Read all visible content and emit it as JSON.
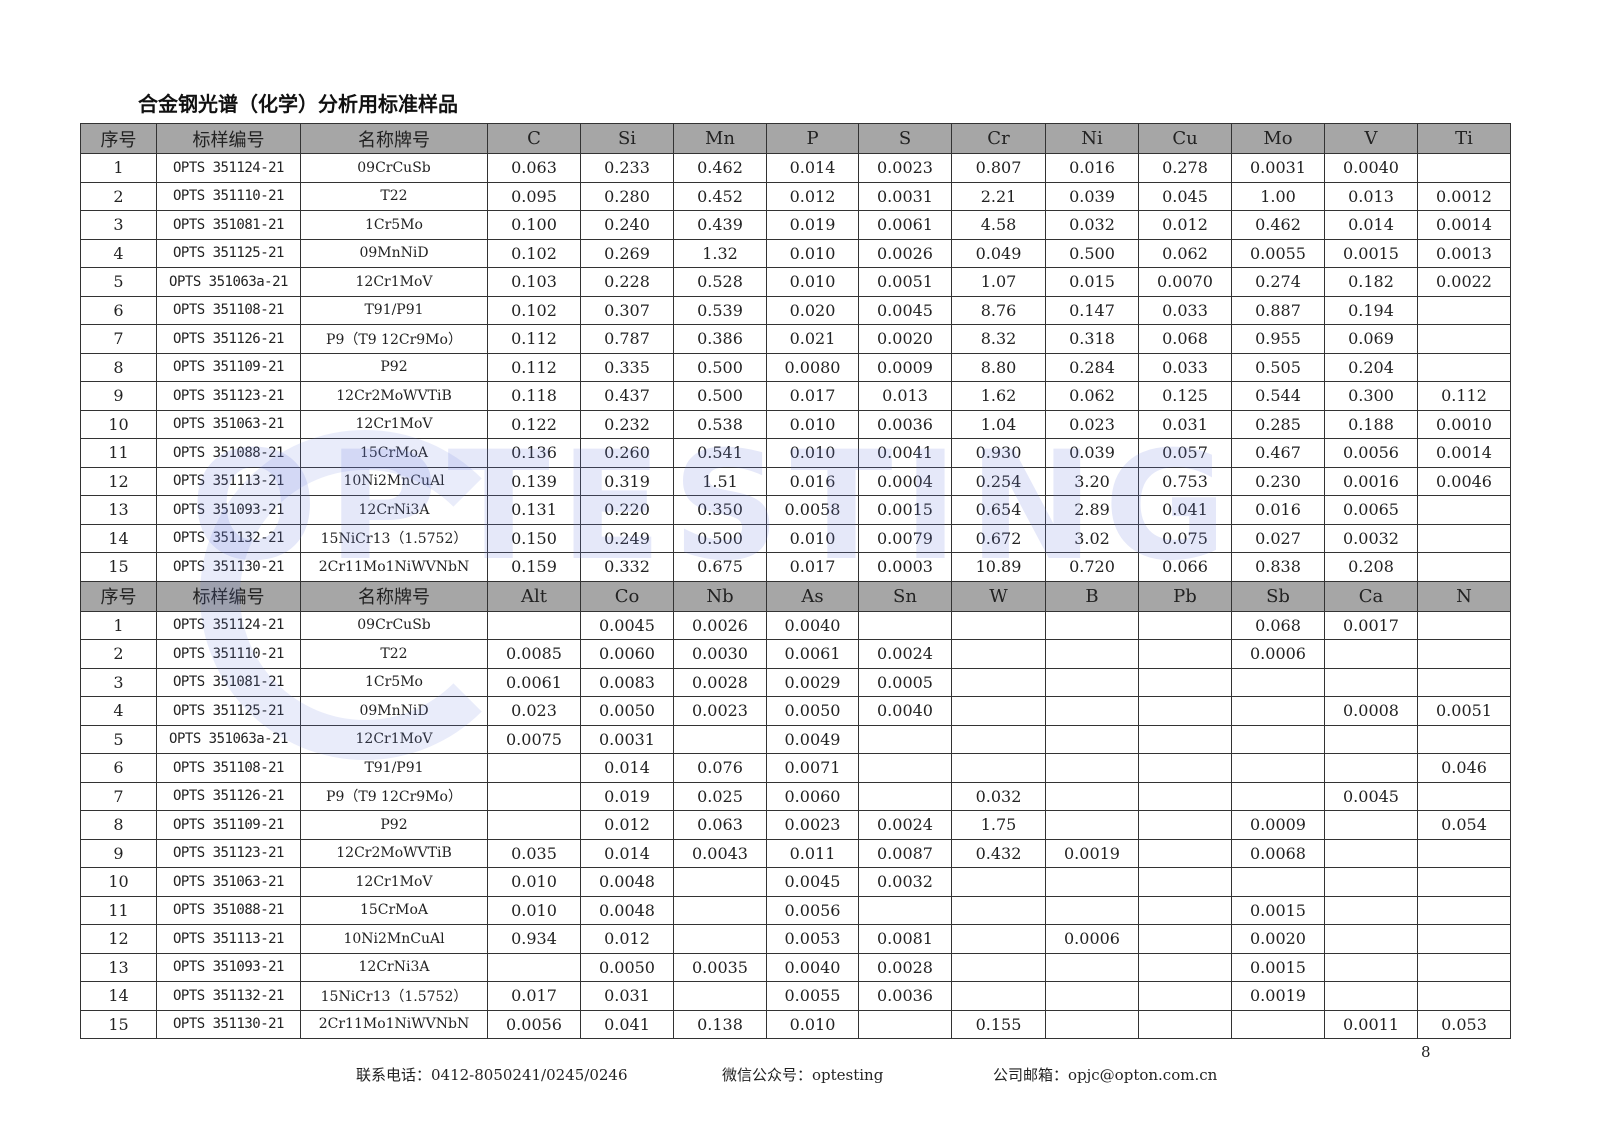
{
  "title": "合金钢光谱（化学）分析用标准样品",
  "watermark": "OPTESTING",
  "table1": {
    "headers": [
      "序号",
      "标样编号",
      "名称牌号",
      "C",
      "Si",
      "Mn",
      "P",
      "S",
      "Cr",
      "Ni",
      "Cu",
      "Mo",
      "V",
      "Ti"
    ],
    "rows": [
      [
        "1",
        "OPTS 351124-21",
        "09CrCuSb",
        "0.063",
        "0.233",
        "0.462",
        "0.014",
        "0.0023",
        "0.807",
        "0.016",
        "0.278",
        "0.0031",
        "0.0040",
        ""
      ],
      [
        "2",
        "OPTS 351110-21",
        "T22",
        "0.095",
        "0.280",
        "0.452",
        "0.012",
        "0.0031",
        "2.21",
        "0.039",
        "0.045",
        "1.00",
        "0.013",
        "0.0012"
      ],
      [
        "3",
        "OPTS 351081-21",
        "1Cr5Mo",
        "0.100",
        "0.240",
        "0.439",
        "0.019",
        "0.0061",
        "4.58",
        "0.032",
        "0.012",
        "0.462",
        "0.014",
        "0.0014"
      ],
      [
        "4",
        "OPTS 351125-21",
        "09MnNiD",
        "0.102",
        "0.269",
        "1.32",
        "0.010",
        "0.0026",
        "0.049",
        "0.500",
        "0.062",
        "0.0055",
        "0.0015",
        "0.0013"
      ],
      [
        "5",
        "OPTS 351063a-21",
        "12Cr1MoV",
        "0.103",
        "0.228",
        "0.528",
        "0.010",
        "0.0051",
        "1.07",
        "0.015",
        "0.0070",
        "0.274",
        "0.182",
        "0.0022"
      ],
      [
        "6",
        "OPTS 351108-21",
        "T91/P91",
        "0.102",
        "0.307",
        "0.539",
        "0.020",
        "0.0045",
        "8.76",
        "0.147",
        "0.033",
        "0.887",
        "0.194",
        ""
      ],
      [
        "7",
        "OPTS 351126-21",
        "P9（T9 12Cr9Mo）",
        "0.112",
        "0.787",
        "0.386",
        "0.021",
        "0.0020",
        "8.32",
        "0.318",
        "0.068",
        "0.955",
        "0.069",
        ""
      ],
      [
        "8",
        "OPTS 351109-21",
        "P92",
        "0.112",
        "0.335",
        "0.500",
        "0.0080",
        "0.0009",
        "8.80",
        "0.284",
        "0.033",
        "0.505",
        "0.204",
        ""
      ],
      [
        "9",
        "OPTS 351123-21",
        "12Cr2MoWVTiB",
        "0.118",
        "0.437",
        "0.500",
        "0.017",
        "0.013",
        "1.62",
        "0.062",
        "0.125",
        "0.544",
        "0.300",
        "0.112"
      ],
      [
        "10",
        "OPTS 351063-21",
        "12Cr1MoV",
        "0.122",
        "0.232",
        "0.538",
        "0.010",
        "0.0036",
        "1.04",
        "0.023",
        "0.031",
        "0.285",
        "0.188",
        "0.0010"
      ],
      [
        "11",
        "OPTS 351088-21",
        "15CrMoA",
        "0.136",
        "0.260",
        "0.541",
        "0.010",
        "0.0041",
        "0.930",
        "0.039",
        "0.057",
        "0.467",
        "0.0056",
        "0.0014"
      ],
      [
        "12",
        "OPTS 351113-21",
        "10Ni2MnCuAl",
        "0.139",
        "0.319",
        "1.51",
        "0.016",
        "0.0004",
        "0.254",
        "3.20",
        "0.753",
        "0.230",
        "0.0016",
        "0.0046"
      ],
      [
        "13",
        "OPTS 351093-21",
        "12CrNi3A",
        "0.131",
        "0.220",
        "0.350",
        "0.0058",
        "0.0015",
        "0.654",
        "2.89",
        "0.041",
        "0.016",
        "0.0065",
        ""
      ],
      [
        "14",
        "OPTS 351132-21",
        "15NiCr13（1.5752）",
        "0.150",
        "0.249",
        "0.500",
        "0.010",
        "0.0079",
        "0.672",
        "3.02",
        "0.075",
        "0.027",
        "0.0032",
        ""
      ],
      [
        "15",
        "OPTS 351130-21",
        "2Cr11Mo1NiWVNbN",
        "0.159",
        "0.332",
        "0.675",
        "0.017",
        "0.0003",
        "10.89",
        "0.720",
        "0.066",
        "0.838",
        "0.208",
        ""
      ]
    ]
  },
  "table2": {
    "headers": [
      "序号",
      "标样编号",
      "名称牌号",
      "Alt",
      "Co",
      "Nb",
      "As",
      "Sn",
      "W",
      "B",
      "Pb",
      "Sb",
      "Ca",
      "N"
    ],
    "rows": [
      [
        "1",
        "OPTS 351124-21",
        "09CrCuSb",
        "",
        "0.0045",
        "0.0026",
        "0.0040",
        "",
        "",
        "",
        "",
        "0.068",
        "0.0017",
        ""
      ],
      [
        "2",
        "OPTS 351110-21",
        "T22",
        "0.0085",
        "0.0060",
        "0.0030",
        "0.0061",
        "0.0024",
        "",
        "",
        "",
        "0.0006",
        "",
        ""
      ],
      [
        "3",
        "OPTS 351081-21",
        "1Cr5Mo",
        "0.0061",
        "0.0083",
        "0.0028",
        "0.0029",
        "0.0005",
        "",
        "",
        "",
        "",
        "",
        ""
      ],
      [
        "4",
        "OPTS 351125-21",
        "09MnNiD",
        "0.023",
        "0.0050",
        "0.0023",
        "0.0050",
        "0.0040",
        "",
        "",
        "",
        "",
        "0.0008",
        "0.0051"
      ],
      [
        "5",
        "OPTS 351063a-21",
        "12Cr1MoV",
        "0.0075",
        "0.0031",
        "",
        "0.0049",
        "",
        "",
        "",
        "",
        "",
        "",
        ""
      ],
      [
        "6",
        "OPTS 351108-21",
        "T91/P91",
        "",
        "0.014",
        "0.076",
        "0.0071",
        "",
        "",
        "",
        "",
        "",
        "",
        "0.046"
      ],
      [
        "7",
        "OPTS 351126-21",
        "P9（T9 12Cr9Mo）",
        "",
        "0.019",
        "0.025",
        "0.0060",
        "",
        "0.032",
        "",
        "",
        "",
        "0.0045",
        ""
      ],
      [
        "8",
        "OPTS 351109-21",
        "P92",
        "",
        "0.012",
        "0.063",
        "0.0023",
        "0.0024",
        "1.75",
        "",
        "",
        "0.0009",
        "",
        "0.054"
      ],
      [
        "9",
        "OPTS 351123-21",
        "12Cr2MoWVTiB",
        "0.035",
        "0.014",
        "0.0043",
        "0.011",
        "0.0087",
        "0.432",
        "0.0019",
        "",
        "0.0068",
        "",
        ""
      ],
      [
        "10",
        "OPTS 351063-21",
        "12Cr1MoV",
        "0.010",
        "0.0048",
        "",
        "0.0045",
        "0.0032",
        "",
        "",
        "",
        "",
        "",
        ""
      ],
      [
        "11",
        "OPTS 351088-21",
        "15CrMoA",
        "0.010",
        "0.0048",
        "",
        "0.0056",
        "",
        "",
        "",
        "",
        "0.0015",
        "",
        ""
      ],
      [
        "12",
        "OPTS 351113-21",
        "10Ni2MnCuAl",
        "0.934",
        "0.012",
        "",
        "0.0053",
        "0.0081",
        "",
        "0.0006",
        "",
        "0.0020",
        "",
        ""
      ],
      [
        "13",
        "OPTS 351093-21",
        "12CrNi3A",
        "",
        "0.0050",
        "0.0035",
        "0.0040",
        "0.0028",
        "",
        "",
        "",
        "0.0015",
        "",
        ""
      ],
      [
        "14",
        "OPTS 351132-21",
        "15NiCr13（1.5752）",
        "0.017",
        "0.031",
        "",
        "0.0055",
        "0.0036",
        "",
        "",
        "",
        "0.0019",
        "",
        ""
      ],
      [
        "15",
        "OPTS 351130-21",
        "2Cr11Mo1NiWVNbN",
        "0.0056",
        "0.041",
        "0.138",
        "0.010",
        "",
        "0.155",
        "",
        "",
        "",
        "0.0011",
        "0.053"
      ]
    ]
  },
  "page_number": "8",
  "footer": {
    "phone": "联系电话：0412-8050241/0245/0246",
    "wechat": "微信公众号：optesting",
    "email": "公司邮箱：opjc@opton.com.cn"
  },
  "colors": {
    "header_bg": "#a6a6a6",
    "watermark": "#6e82dc"
  }
}
